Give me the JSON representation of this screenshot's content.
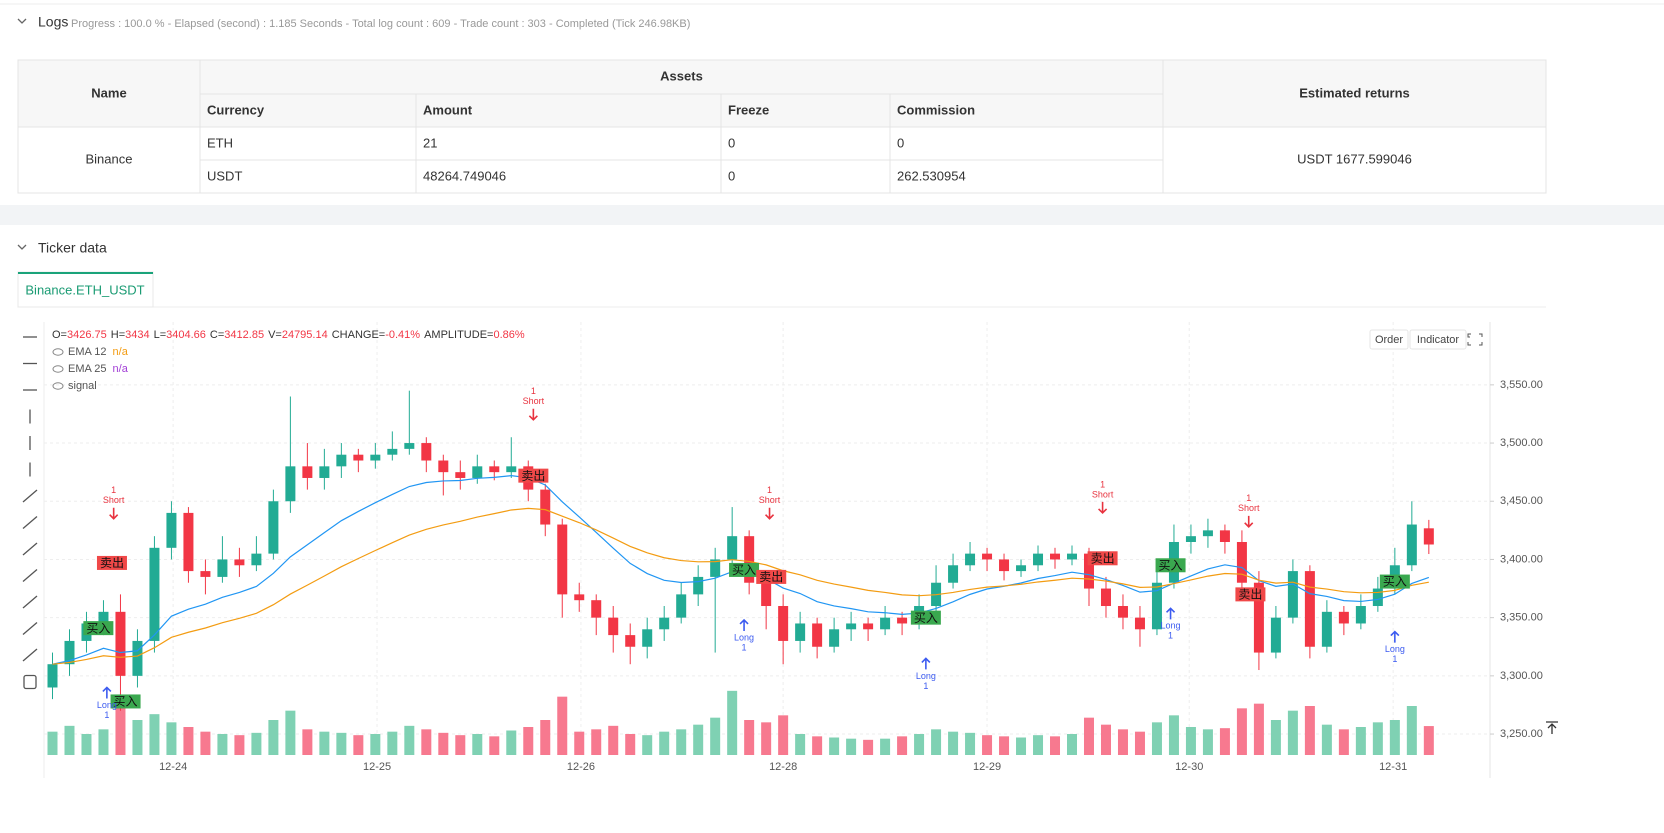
{
  "logs": {
    "title": "Logs",
    "status": "Progress : 100.0 % - Elapsed (second) : 1.185 Seconds - Total log count : 609 - Trade count : 303 - Completed (Tick 246.98KB)"
  },
  "table": {
    "headers": [
      "Name",
      "Assets",
      "Estimated returns"
    ],
    "subheaders": [
      "Currency",
      "Amount",
      "Freeze",
      "Commission"
    ],
    "exchange": "Binance",
    "rows": [
      [
        "ETH",
        21,
        0,
        0
      ],
      [
        "USDT",
        48264.749046,
        0,
        262.530954
      ]
    ],
    "returns": "USDT 1677.599046"
  },
  "ticker": {
    "title": "Ticker data",
    "tab": "Binance.ETH_USDT"
  },
  "chart_data": {
    "type": "candlestick",
    "info": [
      {
        "label": "O=",
        "value": 3426.75
      },
      {
        "label": "H=",
        "value": 3434
      },
      {
        "label": "L=",
        "value": 3404.66
      },
      {
        "label": "C=",
        "value": 3412.85
      },
      {
        "label": "V=",
        "value": 24795.14
      },
      {
        "label": "CHANGE=",
        "value": "-0.41%"
      },
      {
        "label": "AMPLITUDE=",
        "value": "0.86%"
      }
    ],
    "legend": [
      {
        "name": "EMA 12",
        "value": "n/a",
        "color": "#f39c12"
      },
      {
        "name": "EMA 25",
        "value": "n/a",
        "color": "#a23fd6"
      },
      {
        "name": "signal"
      }
    ],
    "buttons": [
      "Order",
      "Indicator"
    ],
    "up_color": "#22ab94",
    "down_color": "#f23645",
    "vol_up_color": "#7fd1b3",
    "vol_down_color": "#f7798f",
    "ema_colors": [
      "#2196f3",
      "#f39c12"
    ],
    "xlim": [
      -0.5,
      84.6
    ],
    "xticks": [
      {
        "value": 7.1,
        "label": "12-24"
      },
      {
        "value": 19.1,
        "label": "12-25"
      },
      {
        "value": 31.1,
        "label": "12-26"
      },
      {
        "value": 43,
        "label": "12-28"
      },
      {
        "value": 55,
        "label": "12-29"
      },
      {
        "value": 66.9,
        "label": "12-30"
      },
      {
        "value": 78.9,
        "label": "12-31"
      }
    ],
    "ylim": [
      3232,
      3604
    ],
    "yticks": [
      {
        "value": 3250,
        "label": "3,250.00"
      },
      {
        "value": 3300,
        "label": "3,300.00"
      },
      {
        "value": 3350,
        "label": "3,350.00"
      },
      {
        "value": 3400,
        "label": "3,400.00"
      },
      {
        "value": 3450,
        "label": "3,450.00"
      },
      {
        "value": 3500,
        "label": "3,500.00"
      },
      {
        "value": 3550,
        "label": "3,550.00"
      }
    ],
    "grid": true,
    "volume_lim": [
      0,
      60000
    ],
    "candles": [
      [
        3290,
        3320,
        3280,
        3310
      ],
      [
        3310,
        3340,
        3300,
        3330
      ],
      [
        3330,
        3355,
        3320,
        3345
      ],
      [
        3345,
        3365,
        3335,
        3355
      ],
      [
        3355,
        3370,
        3270,
        3300
      ],
      [
        3300,
        3340,
        3290,
        3330
      ],
      [
        3330,
        3420,
        3320,
        3410
      ],
      [
        3410,
        3450,
        3400,
        3440
      ],
      [
        3440,
        3445,
        3380,
        3390
      ],
      [
        3390,
        3400,
        3370,
        3385
      ],
      [
        3385,
        3420,
        3380,
        3400
      ],
      [
        3400,
        3410,
        3385,
        3395
      ],
      [
        3395,
        3420,
        3390,
        3405
      ],
      [
        3405,
        3460,
        3400,
        3450
      ],
      [
        3450,
        3540,
        3440,
        3480
      ],
      [
        3480,
        3500,
        3460,
        3470
      ],
      [
        3470,
        3495,
        3460,
        3480
      ],
      [
        3480,
        3500,
        3470,
        3490
      ],
      [
        3490,
        3495,
        3475,
        3485
      ],
      [
        3485,
        3500,
        3478,
        3490
      ],
      [
        3490,
        3510,
        3485,
        3495
      ],
      [
        3495,
        3545,
        3490,
        3500
      ],
      [
        3500,
        3505,
        3475,
        3485
      ],
      [
        3485,
        3490,
        3455,
        3475
      ],
      [
        3475,
        3485,
        3460,
        3470
      ],
      [
        3470,
        3490,
        3465,
        3480
      ],
      [
        3480,
        3485,
        3468,
        3475
      ],
      [
        3475,
        3505,
        3470,
        3480
      ],
      [
        3480,
        3485,
        3450,
        3460
      ],
      [
        3460,
        3465,
        3420,
        3430
      ],
      [
        3430,
        3435,
        3350,
        3370
      ],
      [
        3370,
        3380,
        3355,
        3365
      ],
      [
        3365,
        3370,
        3335,
        3350
      ],
      [
        3350,
        3360,
        3320,
        3335
      ],
      [
        3335,
        3345,
        3310,
        3325
      ],
      [
        3325,
        3350,
        3315,
        3340
      ],
      [
        3340,
        3360,
        3330,
        3350
      ],
      [
        3350,
        3380,
        3345,
        3370
      ],
      [
        3370,
        3395,
        3360,
        3385
      ],
      [
        3385,
        3410,
        3320,
        3400
      ],
      [
        3400,
        3445,
        3390,
        3420
      ],
      [
        3420,
        3425,
        3370,
        3380
      ],
      [
        3380,
        3390,
        3340,
        3360
      ],
      [
        3360,
        3370,
        3310,
        3330
      ],
      [
        3330,
        3355,
        3320,
        3345
      ],
      [
        3345,
        3350,
        3315,
        3325
      ],
      [
        3325,
        3350,
        3320,
        3340
      ],
      [
        3340,
        3355,
        3330,
        3345
      ],
      [
        3345,
        3350,
        3330,
        3340
      ],
      [
        3340,
        3360,
        3335,
        3350
      ],
      [
        3350,
        3355,
        3335,
        3345
      ],
      [
        3345,
        3370,
        3340,
        3360
      ],
      [
        3360,
        3395,
        3355,
        3380
      ],
      [
        3380,
        3405,
        3375,
        3395
      ],
      [
        3395,
        3415,
        3390,
        3405
      ],
      [
        3405,
        3410,
        3390,
        3400
      ],
      [
        3400,
        3405,
        3382,
        3390
      ],
      [
        3390,
        3400,
        3385,
        3395
      ],
      [
        3395,
        3412,
        3390,
        3405
      ],
      [
        3405,
        3410,
        3392,
        3400
      ],
      [
        3400,
        3412,
        3395,
        3405
      ],
      [
        3405,
        3410,
        3360,
        3375
      ],
      [
        3375,
        3385,
        3350,
        3360
      ],
      [
        3360,
        3370,
        3340,
        3350
      ],
      [
        3350,
        3360,
        3325,
        3340
      ],
      [
        3340,
        3390,
        3335,
        3380
      ],
      [
        3380,
        3430,
        3375,
        3415
      ],
      [
        3415,
        3430,
        3405,
        3420
      ],
      [
        3420,
        3435,
        3410,
        3425
      ],
      [
        3425,
        3430,
        3405,
        3415
      ],
      [
        3415,
        3425,
        3370,
        3380
      ],
      [
        3380,
        3390,
        3305,
        3320
      ],
      [
        3320,
        3360,
        3315,
        3350
      ],
      [
        3350,
        3400,
        3345,
        3390
      ],
      [
        3390,
        3395,
        3315,
        3325
      ],
      [
        3325,
        3365,
        3320,
        3355
      ],
      [
        3355,
        3360,
        3335,
        3345
      ],
      [
        3345,
        3370,
        3340,
        3360
      ],
      [
        3360,
        3385,
        3355,
        3375
      ],
      [
        3375,
        3410,
        3370,
        3395
      ],
      [
        3395,
        3450,
        3390,
        3430
      ],
      [
        3426.75,
        3434,
        3404.66,
        3412.85
      ]
    ],
    "volumes": [
      20000,
      25000,
      18000,
      22000,
      48000,
      30000,
      35000,
      28000,
      24000,
      20000,
      18000,
      17000,
      19000,
      30000,
      38000,
      22000,
      20000,
      19000,
      17000,
      18000,
      20000,
      25000,
      22000,
      19000,
      17000,
      18000,
      16000,
      21000,
      24000,
      30000,
      50000,
      20000,
      22000,
      25000,
      18000,
      17000,
      20000,
      22000,
      26000,
      32000,
      55000,
      30000,
      28000,
      34000,
      18000,
      16000,
      15000,
      14000,
      13000,
      14000,
      16000,
      18000,
      22000,
      20000,
      19000,
      17000,
      16000,
      15000,
      17000,
      16000,
      18000,
      32000,
      26000,
      22000,
      20000,
      28000,
      34000,
      24000,
      22000,
      23000,
      40000,
      44000,
      30000,
      38000,
      42000,
      26000,
      22000,
      24000,
      28000,
      30000,
      42000,
      24795.14
    ],
    "signals": [
      {
        "text": "卖出",
        "kind": "sell",
        "index": 3.5,
        "price": 3397
      },
      {
        "text": "买入",
        "kind": "buy",
        "index": 2.7,
        "price": 3341
      },
      {
        "text": "买入",
        "kind": "buy",
        "index": 4.3,
        "price": 3278
      },
      {
        "text": "卖出",
        "kind": "sell",
        "index": 28.3,
        "price": 3472
      },
      {
        "text": "买入",
        "kind": "buy",
        "index": 40.7,
        "price": 3391
      },
      {
        "text": "卖出",
        "kind": "sell",
        "index": 42.3,
        "price": 3385
      },
      {
        "text": "买入",
        "kind": "buy",
        "index": 51.4,
        "price": 3350
      },
      {
        "text": "卖出",
        "kind": "sell",
        "index": 61.8,
        "price": 3401
      },
      {
        "text": "买入",
        "kind": "buy",
        "index": 65.8,
        "price": 3395
      },
      {
        "text": "卖出",
        "kind": "sell",
        "index": 70.5,
        "price": 3370
      },
      {
        "text": "买入",
        "kind": "buy",
        "index": 79,
        "price": 3381
      }
    ],
    "markers": [
      {
        "lines": [
          "1",
          "Short"
        ],
        "dir": "down",
        "index": 3.6,
        "price": 3435
      },
      {
        "lines": [
          "1",
          "Short"
        ],
        "dir": "down",
        "index": 28.3,
        "price": 3520
      },
      {
        "lines": [
          "1",
          "Short"
        ],
        "dir": "down",
        "index": 42.2,
        "price": 3435
      },
      {
        "lines": [
          "1",
          "Short"
        ],
        "dir": "down",
        "index": 61.8,
        "price": 3440
      },
      {
        "lines": [
          "1",
          "Short"
        ],
        "dir": "down",
        "index": 70.4,
        "price": 3428
      },
      {
        "lines": [
          "Long",
          "1"
        ],
        "dir": "up",
        "index": 3.2,
        "price": 3290
      },
      {
        "lines": [
          "Long",
          "1"
        ],
        "dir": "up",
        "index": 40.7,
        "price": 3348
      },
      {
        "lines": [
          "Long",
          "1"
        ],
        "dir": "up",
        "index": 51.4,
        "price": 3315
      },
      {
        "lines": [
          "Long",
          "1"
        ],
        "dir": "up",
        "index": 65.8,
        "price": 3358
      },
      {
        "lines": [
          "Long",
          "1"
        ],
        "dir": "up",
        "index": 79,
        "price": 3338
      }
    ]
  }
}
